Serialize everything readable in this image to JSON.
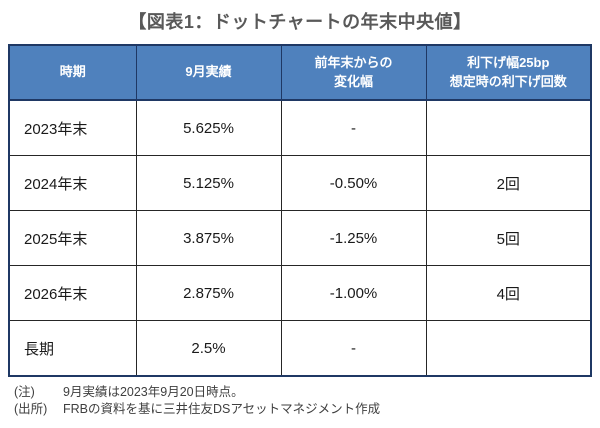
{
  "page_title": "【図表1：ドットチャートの年末中央値】",
  "chart_data": {
    "type": "table",
    "title": "図表1：ドットチャートの年末中央値",
    "columns": [
      "時期",
      "9月実績",
      "前年末からの変化幅",
      "利下げ幅25bp想定時の利下げ回数"
    ],
    "rows": [
      [
        "2023年末",
        "5.625%",
        "-",
        ""
      ],
      [
        "2024年末",
        "5.125%",
        "-0.50%",
        "2回"
      ],
      [
        "2025年末",
        "3.875%",
        "-1.25%",
        "5回"
      ],
      [
        "2026年末",
        "2.875%",
        "-1.00%",
        "4回"
      ],
      [
        "長期",
        "2.5%",
        "-",
        ""
      ]
    ],
    "notes": [
      "(注) 9月実績は2023年9月20日時点。",
      "(出所) FRBの資料を基に三井住友DSアセットマネジメント作成"
    ]
  },
  "headers_display": [
    "時期",
    "9月実績",
    "前年末からの\n変化幅",
    "利下げ幅25bp\n想定時の利下げ回数"
  ],
  "notes": [
    {
      "label": "(注)",
      "text": "9月実績は2023年9月20日時点。"
    },
    {
      "label": "(出所)",
      "text": "FRBの資料を基に三井住友DSアセットマネジメント作成"
    }
  ],
  "colors": {
    "header_bg": "#4f81bd",
    "header_text": "#ffffff",
    "outer_border": "#1f3864",
    "inner_border": "#262626",
    "title_text": "#595959",
    "body_text": "#1a1a1a",
    "note_text": "#3f3f3f",
    "background": "#ffffff"
  }
}
